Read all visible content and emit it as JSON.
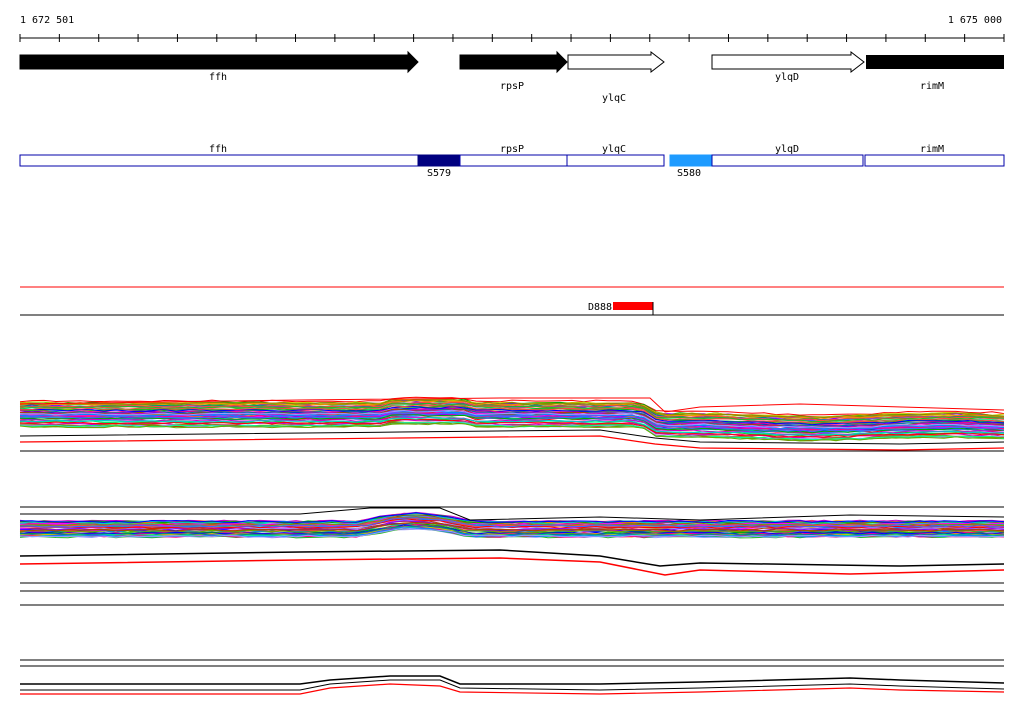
{
  "ruler": {
    "start_label": "1 672 501",
    "end_label": "1 675 000"
  },
  "genes": [
    {
      "name": "ffh",
      "strand": "+",
      "fill": "black"
    },
    {
      "name": "rpsP",
      "strand": "+",
      "fill": "black"
    },
    {
      "name": "ylqC",
      "strand": "+",
      "fill": "white"
    },
    {
      "name": "ylqD",
      "strand": "+",
      "fill": "white"
    },
    {
      "name": "rimM",
      "strand": "+",
      "fill": "black"
    }
  ],
  "segments": {
    "labels": [
      "ffh",
      "rpsP",
      "ylqC",
      "ylqD",
      "rimM"
    ],
    "features": [
      {
        "name": "S579",
        "color": "#000080"
      },
      {
        "name": "S580",
        "color": "#1e9bff"
      }
    ]
  },
  "deletion": {
    "name": "D888",
    "color": "#ff0000"
  },
  "colors": {
    "gene_outline": "#0000aa",
    "guide_red": "#ff0000"
  }
}
